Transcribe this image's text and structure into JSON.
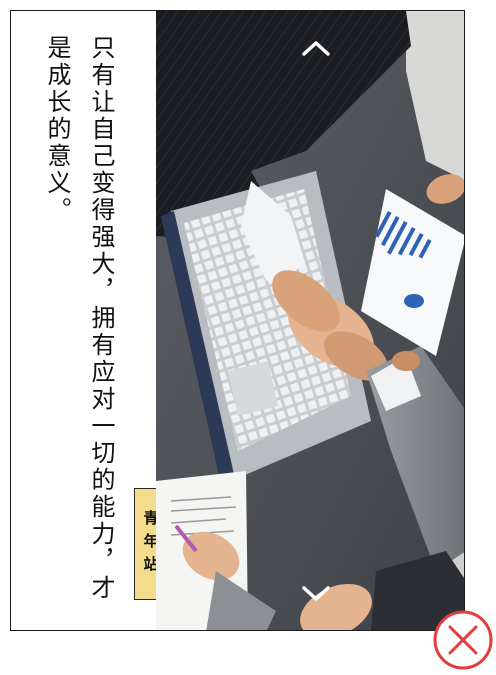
{
  "article": {
    "text": "只有让自己变得强大，拥有应对一切的能力，才是成长的意义。",
    "badge": "青年站"
  },
  "nav": {
    "up_icon": "chevron-up-icon",
    "down_icon": "chevron-down-icon"
  },
  "close": {
    "icon": "close-icon",
    "color": "#e23c3c"
  },
  "photo": {
    "description_icon": "handshake-photo"
  }
}
